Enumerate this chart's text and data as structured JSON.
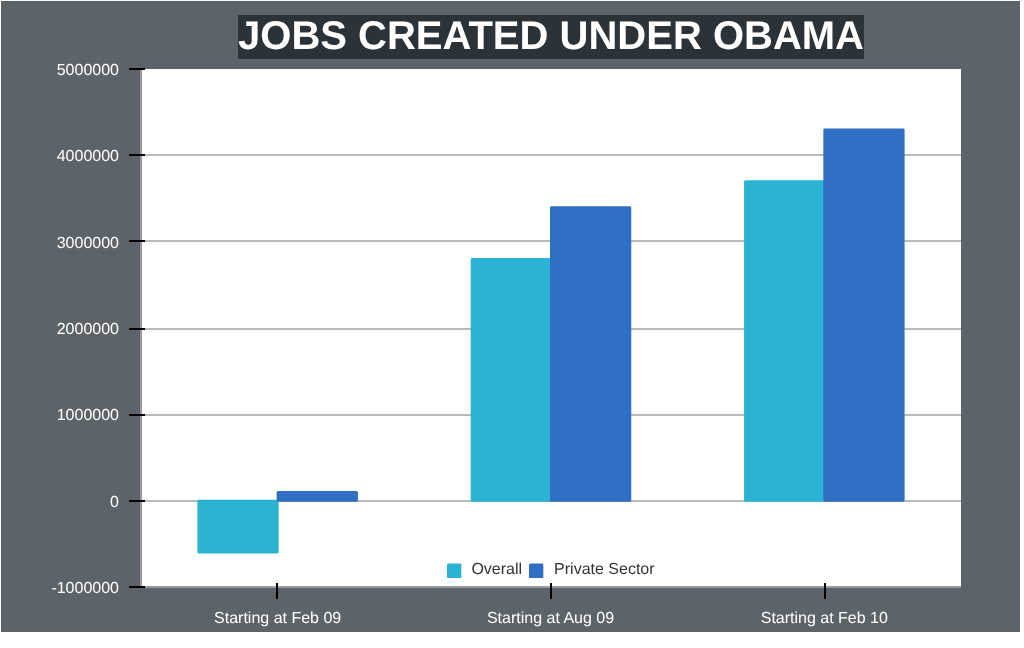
{
  "chart_data": {
    "type": "bar",
    "title": "JOBS CREATED UNDER OBAMA",
    "categories": [
      "Starting at Feb 09",
      "Starting at Aug 09",
      "Starting at Feb 10"
    ],
    "series": [
      {
        "name": "Overall",
        "color": "#2bb3d3",
        "values": [
          -600000,
          2800000,
          3700000
        ]
      },
      {
        "name": "Private Sector",
        "color": "#2f6fc4",
        "values": [
          100000,
          3400000,
          4300000
        ]
      }
    ],
    "ylim": [
      -1000000,
      5000000
    ],
    "yticks": [
      -1000000,
      0,
      1000000,
      2000000,
      3000000,
      4000000,
      5000000
    ],
    "grid": "y",
    "legend": "bottom"
  }
}
